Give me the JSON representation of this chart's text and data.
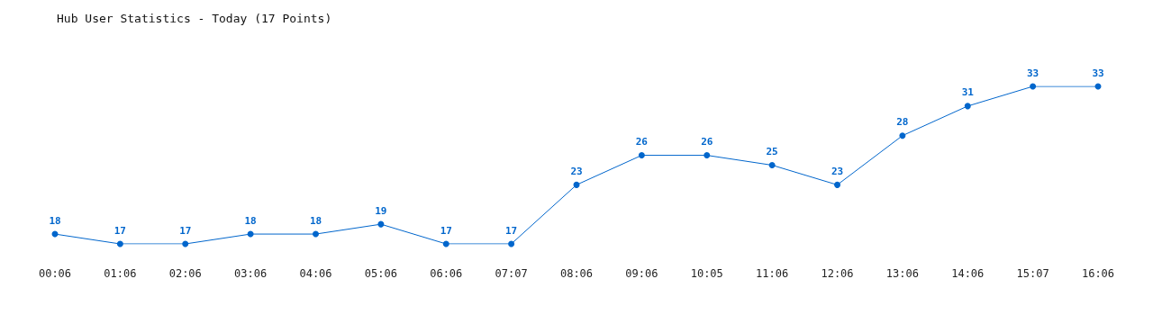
{
  "chart_data": {
    "type": "line",
    "title": "Hub User Statistics - Today (17 Points)",
    "categories": [
      "00:06",
      "01:06",
      "02:06",
      "03:06",
      "04:06",
      "05:06",
      "06:06",
      "07:07",
      "08:06",
      "09:06",
      "10:05",
      "11:06",
      "12:06",
      "13:06",
      "14:06",
      "15:07",
      "16:06"
    ],
    "series": [
      {
        "color": "#0066cc",
        "values": [
          18,
          17,
          17,
          18,
          18,
          19,
          17,
          17,
          23,
          26,
          26,
          25,
          23,
          28,
          31,
          33,
          33
        ]
      }
    ],
    "data_labels": true,
    "marker": "circle",
    "grid": false
  }
}
